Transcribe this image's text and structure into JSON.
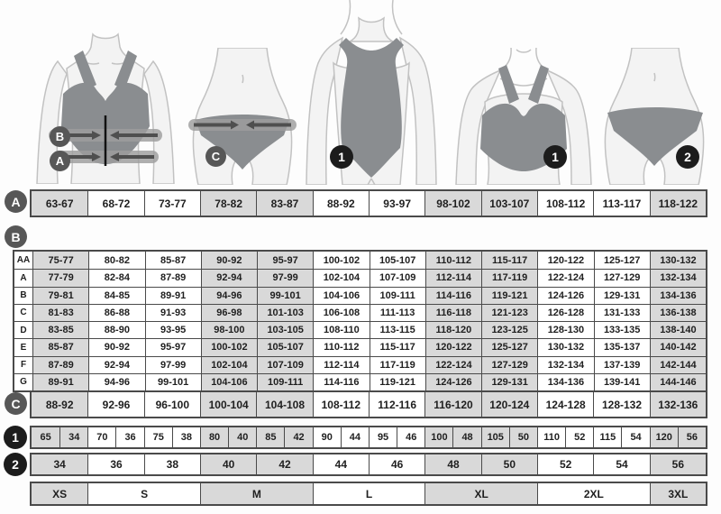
{
  "colors": {
    "cell_gray": "#d9d9d9",
    "cell_white": "#ffffff",
    "table_border": "#4a4a4a",
    "letter_badge": "#575757",
    "number_badge": "#1c1c1c",
    "garment_gray": "#8a8d90"
  },
  "figures": {
    "bra_measured": {
      "badges": [
        "B",
        "A"
      ]
    },
    "panty_measured": {
      "badges": [
        "C"
      ]
    },
    "swimsuit": {
      "badges": [
        "1"
      ]
    },
    "bra": {
      "badges": [
        "1"
      ]
    },
    "panty": {
      "badges": [
        "2"
      ]
    }
  },
  "chart_data": [
    {
      "type": "table",
      "id": "row_a",
      "label": "A",
      "cells": [
        "63-67",
        "68-72",
        "73-77",
        "78-82",
        "83-87",
        "88-92",
        "93-97",
        "98-102",
        "103-107",
        "108-112",
        "113-117",
        "118-122"
      ]
    },
    {
      "type": "table",
      "id": "table_b",
      "label": "B",
      "row_headers": [
        "AA",
        "A",
        "B",
        "C",
        "D",
        "E",
        "F",
        "G"
      ],
      "rows": [
        [
          "75-77",
          "80-82",
          "85-87",
          "90-92",
          "95-97",
          "100-102",
          "105-107",
          "110-112",
          "115-117",
          "120-122",
          "125-127",
          "130-132"
        ],
        [
          "77-79",
          "82-84",
          "87-89",
          "92-94",
          "97-99",
          "102-104",
          "107-109",
          "112-114",
          "117-119",
          "122-124",
          "127-129",
          "132-134"
        ],
        [
          "79-81",
          "84-85",
          "89-91",
          "94-96",
          "99-101",
          "104-106",
          "109-111",
          "114-116",
          "119-121",
          "124-126",
          "129-131",
          "134-136"
        ],
        [
          "81-83",
          "86-88",
          "91-93",
          "96-98",
          "101-103",
          "106-108",
          "111-113",
          "116-118",
          "121-123",
          "126-128",
          "131-133",
          "136-138"
        ],
        [
          "83-85",
          "88-90",
          "93-95",
          "98-100",
          "103-105",
          "108-110",
          "113-115",
          "118-120",
          "123-125",
          "128-130",
          "133-135",
          "138-140"
        ],
        [
          "85-87",
          "90-92",
          "95-97",
          "100-102",
          "105-107",
          "110-112",
          "115-117",
          "120-122",
          "125-127",
          "130-132",
          "135-137",
          "140-142"
        ],
        [
          "87-89",
          "92-94",
          "97-99",
          "102-104",
          "107-109",
          "112-114",
          "117-119",
          "122-124",
          "127-129",
          "132-134",
          "137-139",
          "142-144"
        ],
        [
          "89-91",
          "94-96",
          "99-101",
          "104-106",
          "109-111",
          "114-116",
          "119-121",
          "124-126",
          "129-131",
          "134-136",
          "139-141",
          "144-146"
        ]
      ]
    },
    {
      "type": "table",
      "id": "row_c",
      "label": "C",
      "cells": [
        "88-92",
        "92-96",
        "96-100",
        "100-104",
        "104-108",
        "108-112",
        "112-116",
        "116-120",
        "120-124",
        "124-128",
        "128-132",
        "132-136"
      ]
    },
    {
      "type": "table",
      "id": "row_1",
      "label": "1",
      "cells": [
        "65",
        "34",
        "70",
        "36",
        "75",
        "38",
        "80",
        "40",
        "85",
        "42",
        "90",
        "44",
        "95",
        "46",
        "100",
        "48",
        "105",
        "50",
        "110",
        "52",
        "115",
        "54",
        "120",
        "56"
      ]
    },
    {
      "type": "table",
      "id": "row_2",
      "label": "2",
      "cells": [
        "34",
        "36",
        "38",
        "40",
        "42",
        "44",
        "46",
        "48",
        "50",
        "52",
        "54",
        "56"
      ]
    },
    {
      "type": "table",
      "id": "sizes",
      "cells": [
        {
          "label": "XS",
          "span": 1
        },
        {
          "label": "S",
          "span": 2
        },
        {
          "label": "M",
          "span": 2
        },
        {
          "label": "L",
          "span": 2
        },
        {
          "label": "XL",
          "span": 2
        },
        {
          "label": "2XL",
          "span": 2
        },
        {
          "label": "3XL",
          "span": 1
        }
      ]
    }
  ]
}
